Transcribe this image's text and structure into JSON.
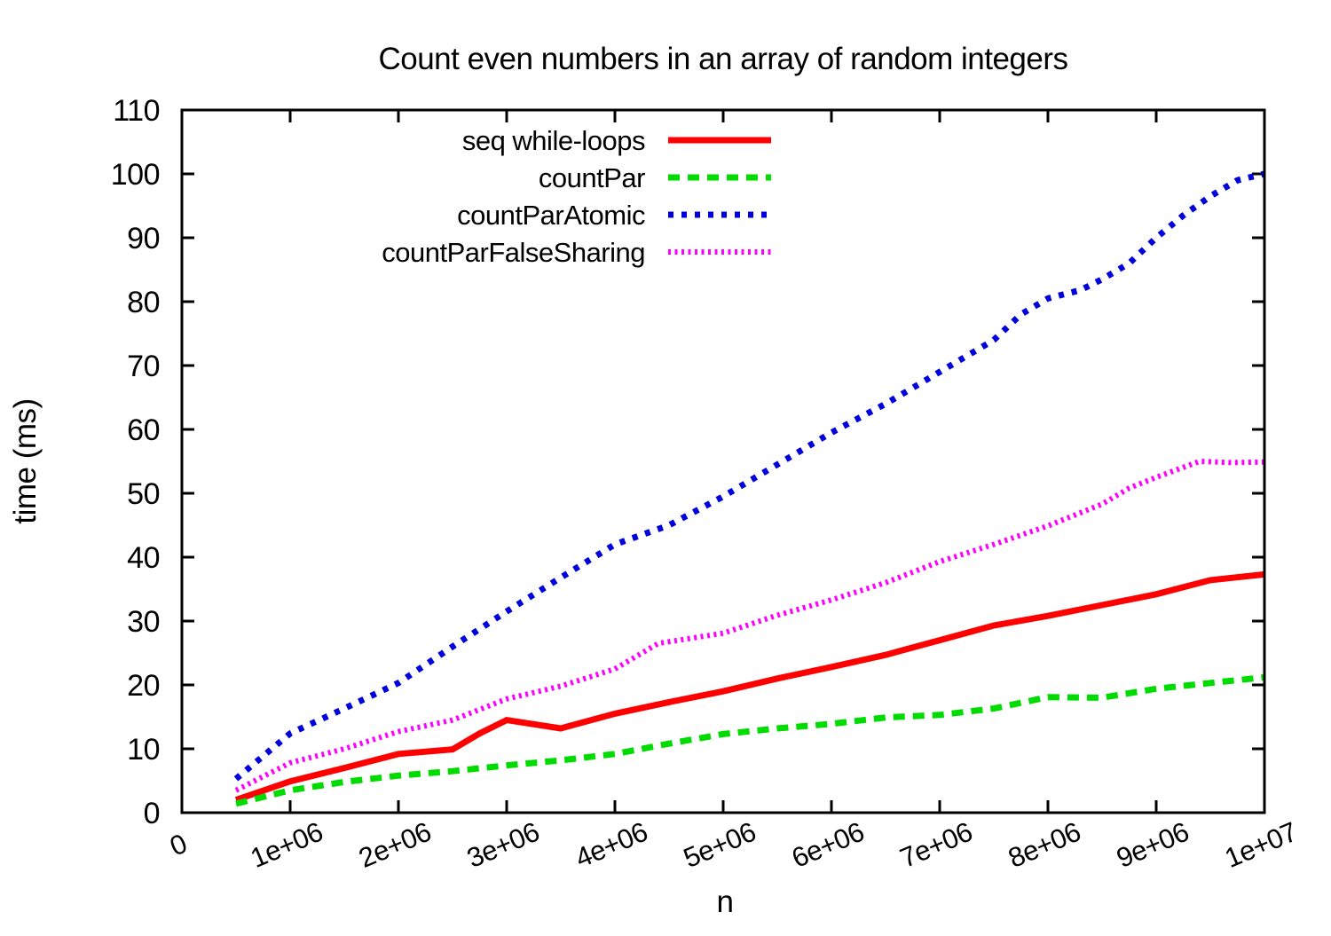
{
  "page": {
    "background": "#ffffff",
    "text_color": "#000000"
  },
  "chart_data": {
    "type": "line",
    "title": "Count even numbers in an array of random integers",
    "xlabel": "n",
    "ylabel": "time (ms)",
    "xlim": [
      0,
      10000000
    ],
    "ylim": [
      0,
      110
    ],
    "grid": false,
    "legend_position": "inside top-left",
    "x_ticks": [
      {
        "value": 0,
        "label": "0"
      },
      {
        "value": 1000000,
        "label": "1e+06"
      },
      {
        "value": 2000000,
        "label": "2e+06"
      },
      {
        "value": 3000000,
        "label": "3e+06"
      },
      {
        "value": 4000000,
        "label": "4e+06"
      },
      {
        "value": 5000000,
        "label": "5e+06"
      },
      {
        "value": 6000000,
        "label": "6e+06"
      },
      {
        "value": 7000000,
        "label": "7e+06"
      },
      {
        "value": 8000000,
        "label": "8e+06"
      },
      {
        "value": 9000000,
        "label": "9e+06"
      },
      {
        "value": 10000000,
        "label": "1e+07"
      }
    ],
    "y_ticks": [
      {
        "value": 0,
        "label": "0"
      },
      {
        "value": 10,
        "label": "10"
      },
      {
        "value": 20,
        "label": "20"
      },
      {
        "value": 30,
        "label": "30"
      },
      {
        "value": 40,
        "label": "40"
      },
      {
        "value": 50,
        "label": "50"
      },
      {
        "value": 60,
        "label": "60"
      },
      {
        "value": 70,
        "label": "70"
      },
      {
        "value": 80,
        "label": "80"
      },
      {
        "value": 90,
        "label": "90"
      },
      {
        "value": 100,
        "label": "100"
      },
      {
        "value": 110,
        "label": "110"
      }
    ],
    "series": [
      {
        "name": "seq while-loops",
        "color": "#ff0000",
        "line_style": "solid",
        "stroke_width": 7,
        "dash": "",
        "points": [
          [
            500000,
            2.0
          ],
          [
            1000000,
            4.9
          ],
          [
            1500000,
            7.0
          ],
          [
            2000000,
            9.2
          ],
          [
            2500000,
            9.9
          ],
          [
            2750000,
            12.4
          ],
          [
            3000000,
            14.5
          ],
          [
            3500000,
            13.2
          ],
          [
            4000000,
            15.5
          ],
          [
            4500000,
            17.3
          ],
          [
            5000000,
            19.0
          ],
          [
            5500000,
            21.0
          ],
          [
            6000000,
            22.8
          ],
          [
            6500000,
            24.7
          ],
          [
            7000000,
            27.0
          ],
          [
            7500000,
            29.3
          ],
          [
            8000000,
            30.8
          ],
          [
            8500000,
            32.5
          ],
          [
            9000000,
            34.2
          ],
          [
            9500000,
            36.4
          ],
          [
            10000000,
            37.3
          ]
        ]
      },
      {
        "name": "countPar",
        "color": "#00dc00",
        "line_style": "dashed",
        "stroke_width": 7,
        "dash": "13 9",
        "points": [
          [
            500000,
            1.4
          ],
          [
            1000000,
            3.5
          ],
          [
            1500000,
            4.8
          ],
          [
            2000000,
            5.8
          ],
          [
            2500000,
            6.5
          ],
          [
            3000000,
            7.4
          ],
          [
            3500000,
            8.2
          ],
          [
            4000000,
            9.2
          ],
          [
            4500000,
            10.8
          ],
          [
            5000000,
            12.3
          ],
          [
            5500000,
            13.2
          ],
          [
            6000000,
            13.9
          ],
          [
            6500000,
            14.9
          ],
          [
            7000000,
            15.3
          ],
          [
            7500000,
            16.3
          ],
          [
            8000000,
            18.1
          ],
          [
            8500000,
            18.0
          ],
          [
            9000000,
            19.4
          ],
          [
            9500000,
            20.3
          ],
          [
            10000000,
            21.2
          ]
        ]
      },
      {
        "name": "countParAtomic",
        "color": "#0000dd",
        "line_style": "dotted",
        "stroke_width": 7,
        "dash": "6 9",
        "points": [
          [
            500000,
            5.3
          ],
          [
            1000000,
            12.4
          ],
          [
            1500000,
            16.3
          ],
          [
            2000000,
            20.3
          ],
          [
            2500000,
            26.0
          ],
          [
            3000000,
            31.5
          ],
          [
            3500000,
            36.8
          ],
          [
            4000000,
            42.0
          ],
          [
            4500000,
            45.0
          ],
          [
            5000000,
            49.5
          ],
          [
            5500000,
            54.5
          ],
          [
            6000000,
            59.5
          ],
          [
            6500000,
            64.0
          ],
          [
            7000000,
            69.0
          ],
          [
            7500000,
            74.0
          ],
          [
            7750000,
            78.0
          ],
          [
            8000000,
            80.5
          ],
          [
            8300000,
            81.8
          ],
          [
            8500000,
            83.5
          ],
          [
            8750000,
            86.0
          ],
          [
            9000000,
            90.0
          ],
          [
            9250000,
            93.5
          ],
          [
            9500000,
            96.5
          ],
          [
            9750000,
            99.0
          ],
          [
            10000000,
            100.0
          ]
        ]
      },
      {
        "name": "countParFalseSharing",
        "color": "#ff00ff",
        "line_style": "fine-dotted",
        "stroke_width": 6,
        "dash": "3 4.5",
        "points": [
          [
            500000,
            3.5
          ],
          [
            1000000,
            7.8
          ],
          [
            1500000,
            10.0
          ],
          [
            2000000,
            12.7
          ],
          [
            2500000,
            14.5
          ],
          [
            3000000,
            17.8
          ],
          [
            3500000,
            19.8
          ],
          [
            4000000,
            22.5
          ],
          [
            4400000,
            26.5
          ],
          [
            5000000,
            28.1
          ],
          [
            5500000,
            30.9
          ],
          [
            6000000,
            33.3
          ],
          [
            6500000,
            36.0
          ],
          [
            7000000,
            39.3
          ],
          [
            7500000,
            42.0
          ],
          [
            8000000,
            44.9
          ],
          [
            8500000,
            48.3
          ],
          [
            8750000,
            50.8
          ],
          [
            9000000,
            52.5
          ],
          [
            9400000,
            55.0
          ],
          [
            9700000,
            54.8
          ],
          [
            10000000,
            54.9
          ]
        ]
      }
    ]
  }
}
